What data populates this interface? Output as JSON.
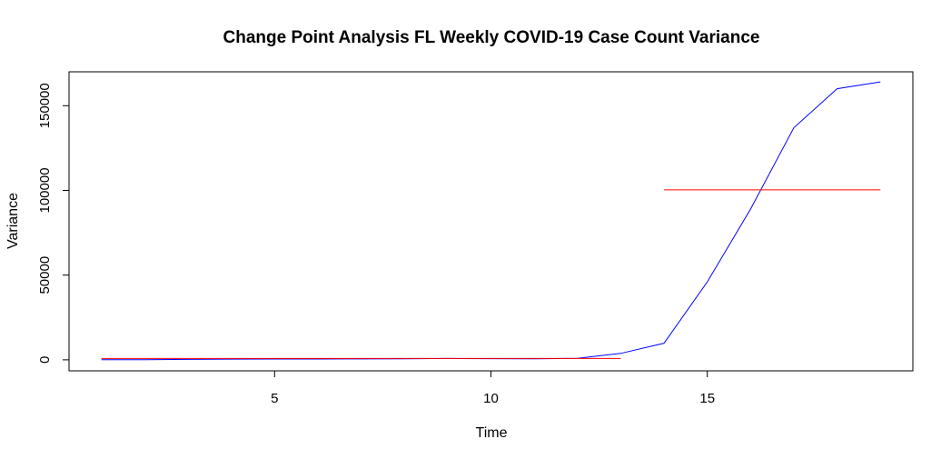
{
  "chart_data": {
    "type": "line",
    "title": "Change Point Analysis FL Weekly COVID-19 Case Count Variance",
    "xlabel": "Time",
    "ylabel": "Variance",
    "xlim": [
      0.25,
      19.75
    ],
    "ylim": [
      -6500,
      170000
    ],
    "x_ticks": [
      5,
      10,
      15
    ],
    "y_ticks": [
      0,
      50000,
      100000,
      150000
    ],
    "x_tick_labels": [
      "5",
      "10",
      "15"
    ],
    "y_tick_labels": [
      "0",
      "50000",
      "100000",
      "150000"
    ],
    "grid": false,
    "colors": {
      "series": "#0000ff",
      "segments": "#ff0000",
      "box": "#000000"
    },
    "series": [
      {
        "x": [
          1,
          2,
          3,
          4,
          5,
          6,
          7,
          8,
          9,
          10,
          11,
          12,
          13,
          14,
          15,
          16,
          17,
          18,
          19
        ],
        "values": [
          80,
          60,
          300,
          400,
          450,
          500,
          550,
          600,
          800,
          700,
          600,
          900,
          3800,
          9800,
          46000,
          89000,
          137000,
          160000,
          164000
        ]
      }
    ],
    "segments": [
      {
        "x_start": 1,
        "x_end": 13,
        "y": 800
      },
      {
        "x_start": 14,
        "x_end": 19,
        "y": 100300
      }
    ]
  }
}
